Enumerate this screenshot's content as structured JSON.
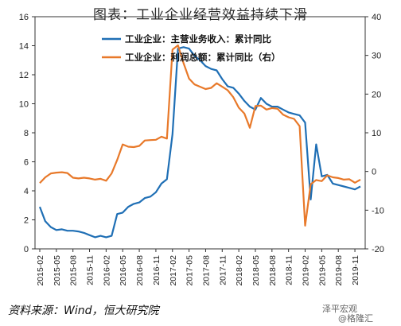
{
  "title": "图表：工业企业经营效益持续下滑",
  "source": "资料来源：Wind，恒大研究院",
  "watermark": "泽平宏观",
  "watermark_sub": "@格隆汇",
  "chart_data": {
    "type": "line",
    "left_axis": {
      "min": 0,
      "max": 16,
      "ticks": [
        0,
        2,
        4,
        6,
        8,
        10,
        12,
        14,
        16
      ]
    },
    "right_axis": {
      "min": -20,
      "max": 40,
      "ticks": [
        -20,
        -10,
        0,
        10,
        20,
        30,
        40
      ]
    },
    "x_tick_labels": [
      "2015-02",
      "2015-05",
      "2015-08",
      "2015-11",
      "2016-02",
      "2016-05",
      "2016-08",
      "2016-11",
      "2017-02",
      "2017-05",
      "2017-08",
      "2017-11",
      "2018-02",
      "2018-05",
      "2018-08",
      "2018-11",
      "2019-02",
      "2019-05",
      "2019-08",
      "2019-11"
    ],
    "x_start": "2015-02",
    "colors": {
      "revenue": "#1f6fb5",
      "profit": "#e8792a"
    },
    "series": [
      {
        "name": "工业企业：主营业务收入：累计同比",
        "axis": "left",
        "color": "#1f6fb5",
        "values": [
          2.9,
          1.9,
          1.5,
          1.3,
          1.35,
          1.25,
          1.25,
          1.2,
          1.1,
          0.95,
          0.8,
          0.9,
          0.8,
          0.9,
          2.4,
          2.5,
          2.9,
          3.1,
          3.2,
          3.5,
          3.6,
          3.9,
          4.5,
          4.8,
          7.9,
          13.8,
          13.9,
          13.8,
          13.3,
          13.0,
          12.6,
          12.4,
          12.3,
          11.7,
          11.2,
          11.1,
          10.7,
          10.2,
          9.8,
          9.6,
          10.4,
          10.0,
          9.8,
          9.8,
          9.6,
          9.4,
          9.3,
          9.2,
          8.7,
          3.4,
          7.2,
          5.0,
          5.1,
          4.5,
          4.4,
          4.3,
          4.2,
          4.1,
          4.3
        ]
      },
      {
        "name": "工业企业：利润总额：累计同比（右）",
        "axis": "right",
        "color": "#e8792a",
        "values": [
          -3.0,
          -1.5,
          -0.5,
          -0.3,
          -0.2,
          -0.4,
          -1.6,
          -1.8,
          -1.6,
          -1.8,
          -2.1,
          -1.9,
          -2.4,
          -0.5,
          3.0,
          7.0,
          6.4,
          6.3,
          6.6,
          8.0,
          8.1,
          8.2,
          9.0,
          8.5,
          31.5,
          32.6,
          28.0,
          24.0,
          22.5,
          21.9,
          21.3,
          21.6,
          22.8,
          21.9,
          21.0,
          19.2,
          16.5,
          15.0,
          11.3,
          16.9,
          17.0,
          16.0,
          16.4,
          16.2,
          14.7,
          14.0,
          13.6,
          11.7,
          -14.0,
          -3.3,
          -2.2,
          -2.5,
          -1.0,
          -1.5,
          -1.7,
          -2.1,
          -2.0,
          -2.9,
          -2.1
        ]
      }
    ],
    "legend": {
      "position": "top-center"
    }
  }
}
